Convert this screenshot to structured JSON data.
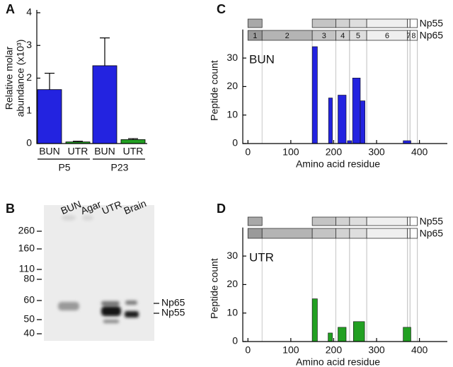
{
  "chart_data": [
    {
      "type": "bar",
      "panel": "A",
      "ylabel": [
        "Relative molar",
        "abundance (x10³)"
      ],
      "categories": [
        "P5",
        "P23"
      ],
      "series": [
        {
          "name": "BUN",
          "color": "#2323e0",
          "values": [
            1.65,
            2.38
          ],
          "errors": [
            0.5,
            0.85
          ]
        },
        {
          "name": "UTR",
          "color": "#22a022",
          "values": [
            0.05,
            0.12
          ],
          "errors": [
            0.02,
            0.03
          ]
        }
      ],
      "ylim": [
        0,
        4
      ],
      "yticks": [
        0,
        1,
        2,
        3,
        4
      ]
    },
    {
      "type": "range-bar",
      "panel": "C",
      "label": "BUN",
      "color": "#2323e0",
      "x_start": [
        150,
        188,
        210,
        232,
        244,
        262,
        362
      ],
      "x_end": [
        162,
        197,
        229,
        242,
        262,
        273,
        380
      ],
      "values": [
        34,
        16,
        17,
        1,
        23,
        15,
        1
      ],
      "xlim": [
        -12,
        465
      ],
      "ylim": [
        0,
        40
      ],
      "xticks": [
        0,
        100,
        200,
        300,
        400
      ],
      "yticks": [
        0,
        10,
        20,
        30
      ],
      "xlabel": "Amino acid residue",
      "ylabel": "Peptide count",
      "proteins": [
        {
          "name": "Np55",
          "segments": [
            [
              0,
              33
            ],
            [
              150,
              205
            ],
            [
              205,
              237
            ],
            [
              237,
              277
            ],
            [
              277,
              372
            ],
            [
              372,
              378
            ],
            [
              378,
              395
            ]
          ],
          "colors": [
            "#a8a8a8",
            "#c4c4c4",
            "#d2d2d2",
            "#dedede",
            "#efefef",
            "#f6f6f6",
            "#ffffff"
          ]
        },
        {
          "name": "Np65",
          "segments": [
            [
              0,
              33
            ],
            [
              33,
              150
            ],
            [
              150,
              205
            ],
            [
              205,
              237
            ],
            [
              237,
              277
            ],
            [
              277,
              372
            ],
            [
              372,
              378
            ],
            [
              378,
              395
            ]
          ],
          "colors": [
            "#9a9a9a",
            "#b4b4b4",
            "#c4c4c4",
            "#d2d2d2",
            "#dedede",
            "#efefef",
            "#f6f6f6",
            "#ffffff"
          ],
          "labels": [
            "1",
            "2",
            "3",
            "4",
            "5",
            "6",
            "7",
            "8"
          ]
        }
      ]
    },
    {
      "type": "range-bar",
      "panel": "D",
      "label": "UTR",
      "color": "#22a022",
      "x_start": [
        150,
        187,
        210,
        246,
        362
      ],
      "x_end": [
        162,
        197,
        229,
        272,
        380
      ],
      "values": [
        15,
        3,
        5,
        7,
        5
      ],
      "xlim": [
        -12,
        465
      ],
      "ylim": [
        0,
        40
      ],
      "xticks": [
        0,
        100,
        200,
        300,
        400
      ],
      "yticks": [
        0,
        10,
        20,
        30
      ],
      "xlabel": "Amino acid residue",
      "ylabel": "Peptide count",
      "proteins": [
        {
          "name": "Np55",
          "segments": [
            [
              0,
              33
            ],
            [
              150,
              205
            ],
            [
              205,
              237
            ],
            [
              237,
              277
            ],
            [
              277,
              372
            ],
            [
              372,
              378
            ],
            [
              378,
              395
            ]
          ],
          "colors": [
            "#a8a8a8",
            "#c4c4c4",
            "#d2d2d2",
            "#dedede",
            "#efefef",
            "#f6f6f6",
            "#ffffff"
          ]
        },
        {
          "name": "Np65",
          "segments": [
            [
              0,
              33
            ],
            [
              33,
              150
            ],
            [
              150,
              205
            ],
            [
              205,
              237
            ],
            [
              237,
              277
            ],
            [
              277,
              372
            ],
            [
              372,
              378
            ],
            [
              378,
              395
            ]
          ],
          "colors": [
            "#9a9a9a",
            "#b4b4b4",
            "#c4c4c4",
            "#d2d2d2",
            "#dedede",
            "#efefef",
            "#f6f6f6",
            "#ffffff"
          ]
        }
      ]
    }
  ],
  "gel": {
    "panel": "B",
    "lanes": [
      {
        "name": "BUN",
        "color": "#2323e0"
      },
      {
        "name": "Agar",
        "color": "#000000"
      },
      {
        "name": "UTR",
        "color": "#22a022"
      },
      {
        "name": "Brain",
        "color": "#000000"
      }
    ],
    "markers": [
      260,
      160,
      110,
      80,
      60,
      50,
      40
    ],
    "bands": [
      "Np65",
      "Np55"
    ]
  }
}
